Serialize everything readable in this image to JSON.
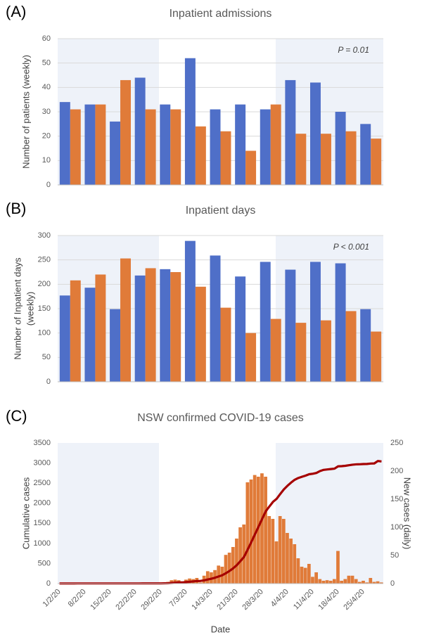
{
  "chart_data": [
    {
      "type": "bar",
      "panel": "(A)",
      "title": "Inpatient admissions",
      "ylabel": [
        "Number of patients (weekly)"
      ],
      "annotation": "P = 0.01",
      "categories": [
        null,
        null,
        null,
        null,
        null,
        null,
        null,
        null,
        null,
        null,
        null,
        null,
        null
      ],
      "series": [
        {
          "color": "#4f6fc8",
          "values": [
            34,
            33,
            26,
            44,
            33,
            52,
            31,
            33,
            31,
            43,
            42,
            30,
            25
          ]
        },
        {
          "color": "#e07b39",
          "values": [
            31,
            33,
            43,
            31,
            31,
            24,
            22,
            14,
            33,
            21,
            21,
            22,
            19
          ]
        }
      ],
      "ylim": [
        0,
        60
      ],
      "yticks": [
        0,
        10,
        20,
        30,
        40,
        50,
        60
      ],
      "grid": true
    },
    {
      "type": "bar",
      "panel": "(B)",
      "title": "Inpatient days",
      "ylabel": [
        "Number of Inpatient days",
        "(weekly)"
      ],
      "annotation": "P < 0.001",
      "categories": [
        null,
        null,
        null,
        null,
        null,
        null,
        null,
        null,
        null,
        null,
        null,
        null,
        null
      ],
      "series": [
        {
          "color": "#4f6fc8",
          "values": [
            177,
            193,
            149,
            218,
            231,
            289,
            259,
            216,
            246,
            230,
            246,
            243,
            149
          ]
        },
        {
          "color": "#e07b39",
          "values": [
            208,
            220,
            253,
            233,
            225,
            195,
            152,
            100,
            129,
            121,
            126,
            145,
            103
          ]
        }
      ],
      "ylim": [
        0,
        300
      ],
      "yticks": [
        0,
        50,
        100,
        150,
        200,
        250,
        300
      ],
      "grid": true
    },
    {
      "type": "combo",
      "panel": "(C)",
      "title": "NSW confirmed COVID-19 cases",
      "ylabel": [
        "Cumulative cases"
      ],
      "y2label": "New cases (daily)",
      "xlabel": "Date",
      "categories": [
        "1/2/20",
        null,
        null,
        null,
        null,
        null,
        null,
        "8/2/20",
        null,
        null,
        null,
        null,
        null,
        null,
        "15/2/20",
        null,
        null,
        null,
        null,
        null,
        null,
        "22/2/20",
        null,
        null,
        null,
        null,
        null,
        null,
        "29/2/20",
        null,
        null,
        null,
        null,
        null,
        null,
        "7/3/20",
        null,
        null,
        null,
        null,
        null,
        null,
        "14/3/20",
        null,
        null,
        null,
        null,
        null,
        null,
        "21/3/20",
        null,
        null,
        null,
        null,
        null,
        null,
        "28/3/20",
        null,
        null,
        null,
        null,
        null,
        null,
        "4/4/20",
        null,
        null,
        null,
        null,
        null,
        null,
        "11/4/20",
        null,
        null,
        null,
        null,
        null,
        null,
        "18/4/20",
        null,
        null,
        null,
        null,
        null,
        null,
        "25/4/20",
        null,
        null,
        null,
        null,
        null
      ],
      "series": [
        {
          "kind": "bar",
          "axis": "y2",
          "color": "#e07b39",
          "values": [
            0,
            0,
            0,
            0,
            0,
            0,
            0,
            0,
            0,
            0,
            0,
            0,
            0,
            0,
            0,
            0,
            0,
            0,
            0,
            0,
            0,
            0,
            0,
            0,
            0,
            0,
            0,
            0,
            0,
            2,
            3,
            6,
            7,
            6,
            2,
            7,
            9,
            8,
            10,
            2,
            14,
            22,
            20,
            24,
            32,
            30,
            51,
            55,
            65,
            80,
            100,
            105,
            180,
            185,
            193,
            190,
            196,
            190,
            120,
            115,
            75,
            120,
            115,
            90,
            80,
            70,
            45,
            30,
            28,
            35,
            12,
            20,
            8,
            5,
            6,
            5,
            8,
            58,
            5,
            8,
            14,
            14,
            8,
            3,
            5,
            2,
            10,
            3,
            4,
            2
          ]
        },
        {
          "kind": "line",
          "color": "#a50000",
          "values": [
            2,
            2,
            2,
            2,
            2,
            3,
            3,
            3,
            3,
            3,
            3,
            3,
            3,
            3,
            3,
            3,
            3,
            3,
            3,
            3,
            3,
            3,
            3,
            4,
            4,
            4,
            4,
            4,
            4,
            6,
            9,
            15,
            22,
            28,
            30,
            37,
            46,
            54,
            64,
            66,
            80,
            102,
            122,
            146,
            178,
            208,
            259,
            314,
            379,
            459,
            559,
            664,
            844,
            1029,
            1222,
            1412,
            1608,
            1798,
            1918,
            2033,
            2108,
            2228,
            2343,
            2433,
            2513,
            2583,
            2628,
            2658,
            2686,
            2721,
            2733,
            2753,
            2800,
            2830,
            2840,
            2850,
            2860,
            2918,
            2923,
            2931,
            2945,
            2959,
            2967,
            2970,
            2975,
            2977,
            2987,
            2990,
            3050,
            3040
          ]
        }
      ],
      "ylim": [
        0,
        3500
      ],
      "yticks": [
        0,
        500,
        1000,
        1500,
        2000,
        2500,
        3000,
        3500
      ],
      "y2lim": [
        0,
        250
      ],
      "y2ticks": [
        0,
        50,
        100,
        150,
        200,
        250
      ],
      "grid": false
    }
  ]
}
